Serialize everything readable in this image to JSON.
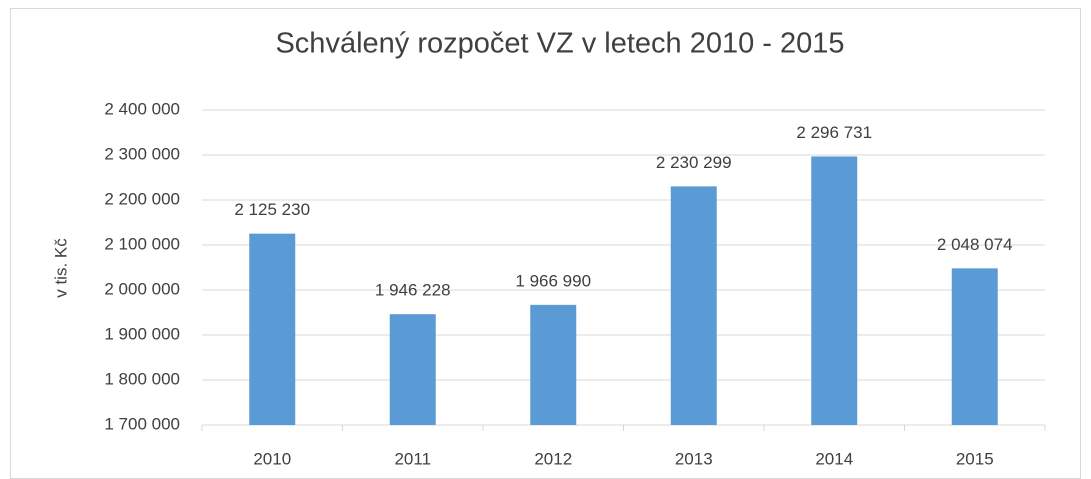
{
  "chart_data": {
    "type": "bar",
    "title": "Schválený rozpočet VZ v letech 2010 - 2015",
    "y_label": "v tis. Kč",
    "categories": [
      "2010",
      "2011",
      "2012",
      "2013",
      "2014",
      "2015"
    ],
    "values": [
      2125230,
      1946228,
      1966990,
      2230299,
      2296731,
      2048074
    ],
    "value_labels": [
      "2 125 230",
      "1 946 228",
      "1 966 990",
      "2 230 299",
      "2 296 731",
      "2 048 074"
    ],
    "color": "#5b9bd5",
    "ylim": [
      1700000,
      2400000
    ],
    "yticks": [
      {
        "value": 1700000,
        "label": "1 700 000"
      },
      {
        "value": 1800000,
        "label": "1 800 000"
      },
      {
        "value": 1900000,
        "label": "1 900 000"
      },
      {
        "value": 2000000,
        "label": "2 000 000"
      },
      {
        "value": 2100000,
        "label": "2 100 000"
      },
      {
        "value": 2200000,
        "label": "2 200 000"
      },
      {
        "value": 2300000,
        "label": "2 300 000"
      },
      {
        "value": 2400000,
        "label": "2 400 000"
      }
    ],
    "grid": true
  }
}
